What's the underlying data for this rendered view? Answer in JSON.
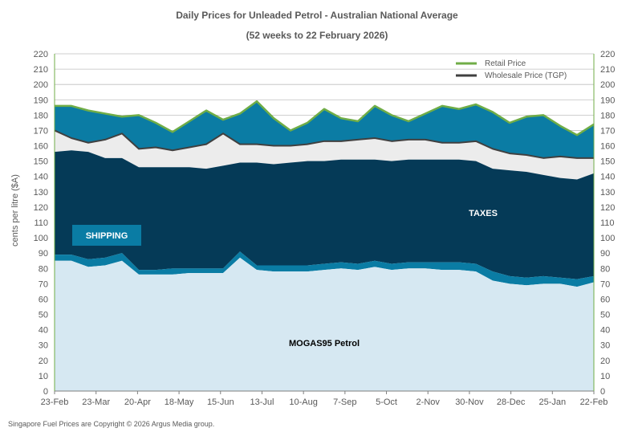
{
  "header": {
    "title": "Daily  Prices for Unleaded  Petrol  - Australian  National  Average",
    "subtitle": "(52 weeks to 22 February  2026)"
  },
  "footer": {
    "copyright": "Singapore  Fuel Prices are  Copyright © 2026 Argus Media  group."
  },
  "colors": {
    "mogas": "#d6e8f2",
    "shipping": "#0a7ca4",
    "taxes": "#053a57",
    "margin_gap": "#ececec",
    "retail_margin": "#0b7ca4",
    "retail_line": "#70ad47",
    "wholesale_line": "#404040",
    "grid": "#bfbfbf"
  },
  "chart_data": {
    "type": "area",
    "ylabel": "cents per litre ($A)",
    "ylim": [
      0,
      220
    ],
    "ytick_step": 10,
    "grid": true,
    "legend_position": "top-right",
    "x_ticks": [
      "23-Feb",
      "23-Mar",
      "20-Apr",
      "18-May",
      "15-Jun",
      "13-Jul",
      "10-Aug",
      "7-Sep",
      "5-Oct",
      "2-Nov",
      "30-Nov",
      "28-Dec",
      "25-Jan",
      "22-Feb"
    ],
    "band_labels": {
      "shipping": "SHIPPING",
      "taxes": "TAXES",
      "mogas": "MOGAS95 Petrol"
    },
    "series": [
      {
        "name": "Retail Price",
        "kind": "line",
        "values": [
          186,
          186,
          183,
          181,
          179,
          180,
          175,
          169,
          176,
          183,
          177,
          181,
          189,
          178,
          170,
          175,
          184,
          178,
          176,
          186,
          180,
          176,
          181,
          186,
          184,
          187,
          182,
          175,
          179,
          180,
          173,
          167,
          174
        ]
      },
      {
        "name": "Wholesale Price (TGP)",
        "kind": "line",
        "values": [
          170,
          165,
          162,
          164,
          168,
          158,
          159,
          157,
          159,
          161,
          168,
          161,
          161,
          160,
          160,
          161,
          163,
          163,
          164,
          165,
          163,
          164,
          164,
          162,
          162,
          163,
          158,
          155,
          154,
          152,
          153,
          152,
          152
        ]
      },
      {
        "name": "TAXES",
        "kind": "band",
        "values": [
          156,
          157,
          156,
          152,
          152,
          146,
          146,
          146,
          146,
          145,
          147,
          149,
          149,
          148,
          149,
          150,
          150,
          151,
          151,
          151,
          150,
          151,
          151,
          151,
          151,
          150,
          145,
          144,
          143,
          141,
          139,
          138,
          142
        ]
      },
      {
        "name": "SHIPPING",
        "kind": "band",
        "values": [
          89,
          89,
          86,
          87,
          90,
          79,
          79,
          80,
          80,
          80,
          80,
          91,
          82,
          82,
          82,
          82,
          83,
          84,
          83,
          85,
          83,
          84,
          84,
          84,
          84,
          83,
          78,
          75,
          74,
          75,
          74,
          73,
          75
        ]
      },
      {
        "name": "MOGAS95 Petrol",
        "kind": "band",
        "values": [
          85,
          85,
          81,
          82,
          85,
          76,
          76,
          76,
          77,
          77,
          77,
          87,
          79,
          78,
          78,
          78,
          79,
          80,
          79,
          81,
          79,
          80,
          80,
          79,
          79,
          78,
          72,
          70,
          69,
          70,
          70,
          68,
          71
        ]
      }
    ]
  }
}
